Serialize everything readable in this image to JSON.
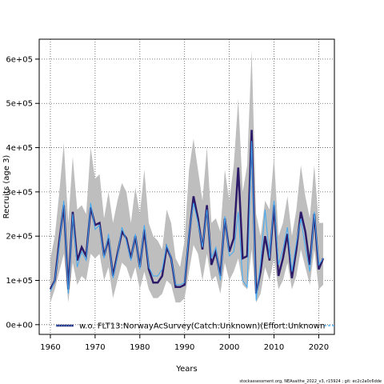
{
  "chart_data": {
    "type": "line",
    "xlabel": "Years",
    "ylabel": "Recruits (age 3)",
    "xlim": [
      1957.5,
      2023.5
    ],
    "ylim": [
      -22000,
      645000
    ],
    "x_ticks": [
      1960,
      1970,
      1980,
      1990,
      2000,
      2010,
      2020
    ],
    "x_tick_labels": [
      "1960",
      "1970",
      "1980",
      "1990",
      "2000",
      "2010",
      "2020"
    ],
    "y_ticks": [
      0,
      100000,
      200000,
      300000,
      400000,
      500000,
      600000
    ],
    "y_tick_labels": [
      "0e+00",
      "1e+05",
      "2e+05",
      "3e+05",
      "4e+05",
      "5e+05",
      "6e+05"
    ],
    "grid": true,
    "legend_position": "bottom",
    "legend_entries": [
      "w.o. FLT13:NorwayAcSurvey(Catch:Unknown)(Effort:Unknown"
    ],
    "x": [
      1960,
      1961,
      1962,
      1963,
      1964,
      1965,
      1966,
      1967,
      1968,
      1969,
      1970,
      1971,
      1972,
      1973,
      1974,
      1975,
      1976,
      1977,
      1978,
      1979,
      1980,
      1981,
      1982,
      1983,
      1984,
      1985,
      1986,
      1987,
      1988,
      1989,
      1990,
      1991,
      1992,
      1993,
      1994,
      1995,
      1996,
      1997,
      1998,
      1999,
      2000,
      2001,
      2002,
      2003,
      2004,
      2005,
      2006,
      2007,
      2008,
      2009,
      2010,
      2011,
      2012,
      2013,
      2014,
      2015,
      2016,
      2017,
      2018,
      2019,
      2020,
      2021
    ],
    "series": [
      {
        "name": "",
        "color": "#2d1b69",
        "values": [
          80000,
          100000,
          190000,
          270000,
          80000,
          255000,
          145000,
          175000,
          155000,
          265000,
          225000,
          230000,
          155000,
          195000,
          110000,
          160000,
          210000,
          195000,
          150000,
          200000,
          130000,
          215000,
          125000,
          95000,
          95000,
          110000,
          175000,
          150000,
          85000,
          85000,
          90000,
          200000,
          290000,
          240000,
          170000,
          270000,
          135000,
          165000,
          110000,
          240000,
          165000,
          195000,
          355000,
          150000,
          155000,
          440000,
          70000,
          120000,
          200000,
          145000,
          270000,
          110000,
          150000,
          205000,
          105000,
          170000,
          255000,
          210000,
          135000,
          250000,
          125000,
          150000
        ]
      },
      {
        "name": "w.o. FLT13:NorwayAcSurvey(Catch:Unknown)(Effort:Unknown",
        "color": "#3fa9f5",
        "values": [
          75000,
          100000,
          180000,
          280000,
          70000,
          250000,
          130000,
          165000,
          145000,
          275000,
          215000,
          225000,
          150000,
          205000,
          105000,
          155000,
          220000,
          190000,
          145000,
          205000,
          125000,
          225000,
          130000,
          110000,
          110000,
          125000,
          180000,
          150000,
          90000,
          90000,
          95000,
          205000,
          275000,
          230000,
          175000,
          260000,
          150000,
          175000,
          100000,
          245000,
          155000,
          165000,
          255000,
          100000,
          85000,
          415000,
          55000,
          140000,
          260000,
          150000,
          280000,
          135000,
          170000,
          220000,
          120000,
          185000,
          240000,
          175000,
          120000,
          255000,
          135000,
          150000
        ]
      }
    ],
    "ci_upper": [
      150000,
      200000,
      300000,
      410000,
      230000,
      380000,
      260000,
      270000,
      250000,
      400000,
      330000,
      340000,
      240000,
      300000,
      230000,
      280000,
      320000,
      300000,
      230000,
      310000,
      250000,
      350000,
      230000,
      200000,
      190000,
      170000,
      260000,
      230000,
      150000,
      130000,
      190000,
      350000,
      420000,
      350000,
      280000,
      400000,
      230000,
      240000,
      210000,
      350000,
      280000,
      360000,
      510000,
      300000,
      360000,
      620000,
      250000,
      200000,
      280000,
      260000,
      380000,
      200000,
      230000,
      290000,
      200000,
      260000,
      360000,
      290000,
      240000,
      360000,
      230000,
      230000
    ],
    "ci_lower": [
      50000,
      80000,
      120000,
      160000,
      50000,
      140000,
      90000,
      110000,
      100000,
      160000,
      150000,
      160000,
      100000,
      130000,
      60000,
      100000,
      140000,
      130000,
      100000,
      130000,
      80000,
      120000,
      80000,
      60000,
      60000,
      70000,
      100000,
      90000,
      50000,
      50000,
      60000,
      120000,
      180000,
      160000,
      100000,
      160000,
      100000,
      110000,
      70000,
      140000,
      100000,
      120000,
      150000,
      90000,
      80000,
      170000,
      50000,
      70000,
      130000,
      100000,
      150000,
      80000,
      100000,
      140000,
      80000,
      110000,
      170000,
      130000,
      90000,
      170000,
      80000,
      90000
    ]
  },
  "footer_text": "stockassessment.org, NEAsaithe_2022_v3, r15924 ; git: ec2c2a0c6dde"
}
